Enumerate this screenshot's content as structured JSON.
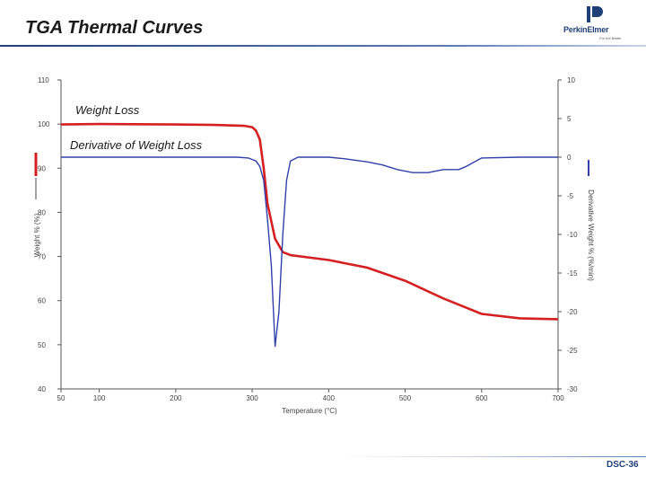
{
  "header": {
    "title": "TGA Thermal Curves"
  },
  "logo": {
    "name": "PerkinElmer",
    "tagline": "For the Better"
  },
  "footer": {
    "slide_number": "DSC-36"
  },
  "chart_data": {
    "type": "line",
    "title": "",
    "xlabel": "Temperature (°C)",
    "ylabel": "Weight % (%)",
    "y2label": "Derivative Weight % (%/min)",
    "xlim": [
      50,
      700
    ],
    "ylim": [
      40,
      110
    ],
    "y2lim": [
      -30,
      10
    ],
    "x_ticks": [
      50,
      100,
      200,
      300,
      400,
      500,
      600,
      700
    ],
    "x_tick_labels": [
      "50",
      "100",
      "200",
      "300",
      "400",
      "500",
      "600",
      "700"
    ],
    "y_ticks": [
      40,
      50,
      60,
      70,
      80,
      90,
      100,
      110
    ],
    "y_tick_labels": [
      "40",
      "50",
      "60",
      "70",
      "80",
      "90",
      "100",
      "110"
    ],
    "y2_ticks": [
      -30,
      -25,
      -20,
      -15,
      -10,
      -5,
      0,
      5,
      10
    ],
    "y2_tick_labels": [
      "-30",
      "-25",
      "-20",
      "-15",
      "-10",
      "-5",
      "0",
      "5",
      "10"
    ],
    "grid": false,
    "legend": "none",
    "series": [
      {
        "name": "Weight Loss",
        "axis": "left",
        "color": "#d42020",
        "x": [
          50,
          100,
          200,
          250,
          290,
          300,
          305,
          310,
          315,
          320,
          330,
          340,
          350,
          400,
          450,
          500,
          550,
          600,
          650,
          700
        ],
        "y": [
          99.9,
          100,
          99.9,
          99.8,
          99.6,
          99.3,
          98.5,
          96.5,
          90,
          82,
          74,
          71,
          70.3,
          69.2,
          67.5,
          64.5,
          60.5,
          57,
          56,
          55.8
        ]
      },
      {
        "name": "Derivative of Weight Loss",
        "axis": "right",
        "color": "#3040a8",
        "x": [
          50,
          100,
          200,
          280,
          295,
          300,
          305,
          310,
          315,
          320,
          325,
          330,
          335,
          340,
          345,
          350,
          360,
          380,
          400,
          420,
          450,
          470,
          490,
          510,
          530,
          550,
          570,
          580,
          600,
          650,
          700
        ],
        "y": [
          0,
          0,
          0,
          0,
          -0.1,
          -0.3,
          -0.5,
          -1.2,
          -3,
          -8,
          -14,
          -24.5,
          -20,
          -10,
          -3,
          -0.5,
          0,
          0,
          0,
          -0.2,
          -0.6,
          -1,
          -1.6,
          -2,
          -2,
          -1.6,
          -1.6,
          -1.2,
          -0.1,
          0,
          0
        ]
      }
    ]
  }
}
